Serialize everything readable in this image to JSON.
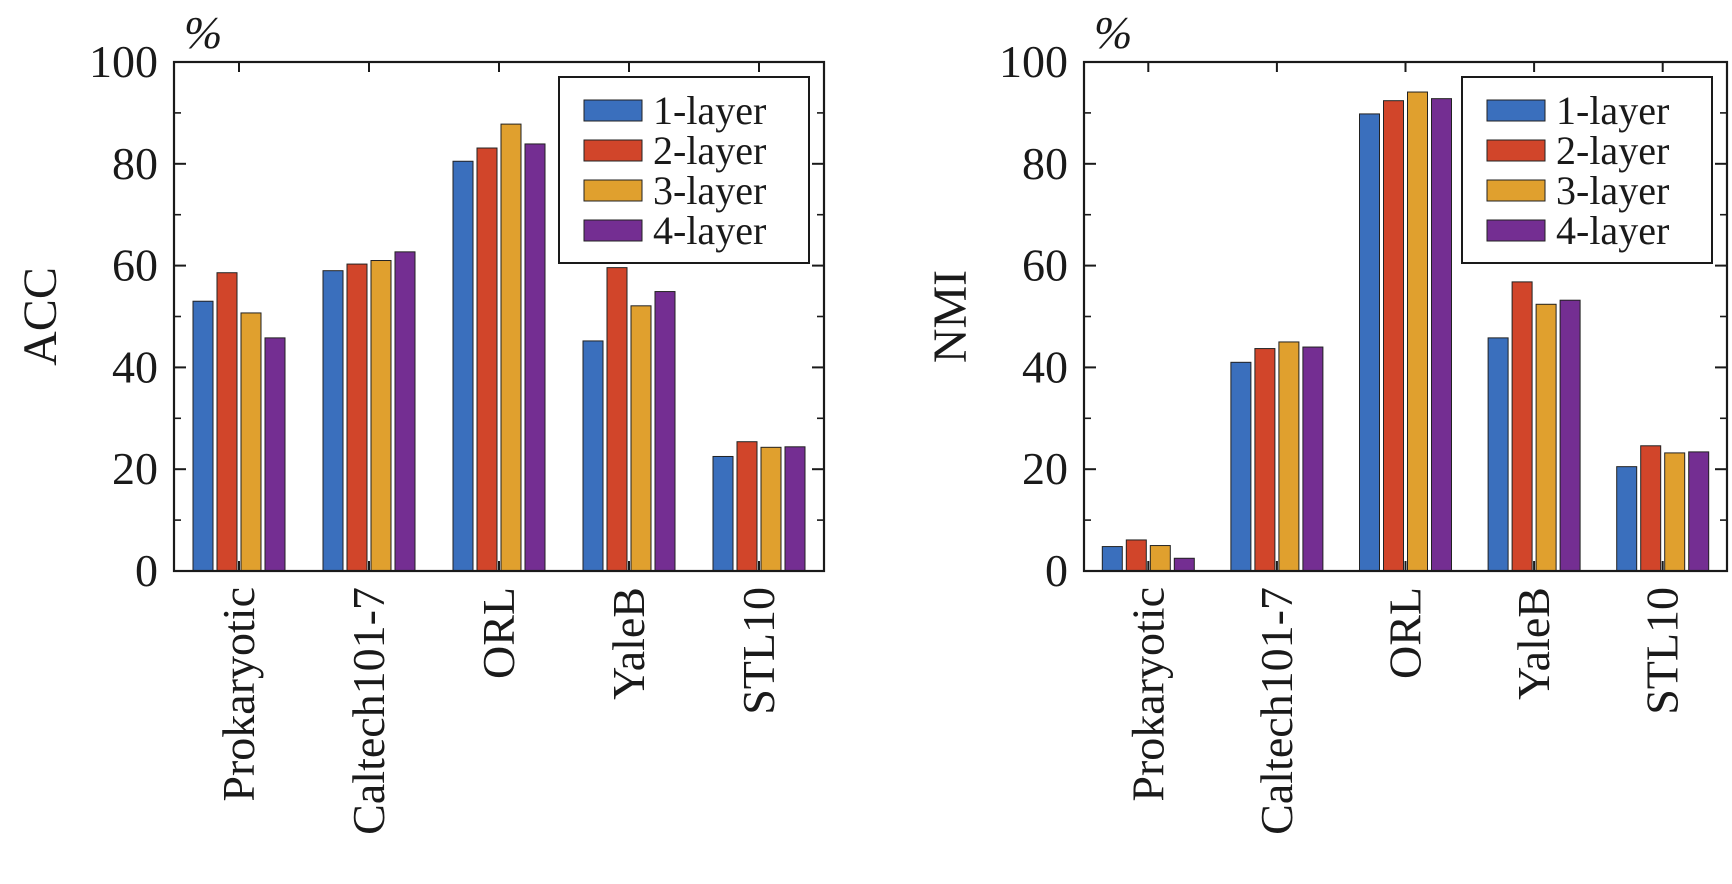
{
  "colors": {
    "series": [
      "#3a6fbd",
      "#d1452a",
      "#e0a02e",
      "#742e92"
    ],
    "axis": "#1a1a1a",
    "background": "#ffffff"
  },
  "chart_data": [
    {
      "type": "bar",
      "title": "",
      "unit_label": "%",
      "ylabel": "ACC",
      "xlabel": "",
      "categories": [
        "Prokaryotic",
        "Caltech101-7",
        "ORL",
        "YaleB",
        "STL10"
      ],
      "ylim": [
        0,
        100
      ],
      "yticks": [
        0,
        20,
        40,
        60,
        80,
        100
      ],
      "grid": false,
      "legend_position": "top-right",
      "series": [
        {
          "name": "1-layer",
          "values": [
            53.0,
            59.0,
            80.5,
            45.2,
            22.5
          ]
        },
        {
          "name": "2-layer",
          "values": [
            58.6,
            60.3,
            83.1,
            59.6,
            25.4
          ]
        },
        {
          "name": "3-layer",
          "values": [
            50.7,
            61.0,
            87.8,
            52.1,
            24.3
          ]
        },
        {
          "name": "4-layer",
          "values": [
            45.8,
            62.7,
            83.9,
            54.9,
            24.4
          ]
        }
      ]
    },
    {
      "type": "bar",
      "title": "",
      "unit_label": "%",
      "ylabel": "NMI",
      "xlabel": "",
      "categories": [
        "Prokaryotic",
        "Caltech101-7",
        "ORL",
        "YaleB",
        "STL10"
      ],
      "ylim": [
        0,
        100
      ],
      "yticks": [
        0,
        20,
        40,
        60,
        80,
        100
      ],
      "grid": false,
      "legend_position": "top-right",
      "series": [
        {
          "name": "1-layer",
          "values": [
            4.8,
            41.0,
            89.8,
            45.8,
            20.5
          ]
        },
        {
          "name": "2-layer",
          "values": [
            6.1,
            43.7,
            92.4,
            56.8,
            24.6
          ]
        },
        {
          "name": "3-layer",
          "values": [
            5.0,
            45.0,
            94.1,
            52.4,
            23.2
          ]
        },
        {
          "name": "4-layer",
          "values": [
            2.5,
            44.0,
            92.8,
            53.2,
            23.4
          ]
        }
      ]
    }
  ]
}
